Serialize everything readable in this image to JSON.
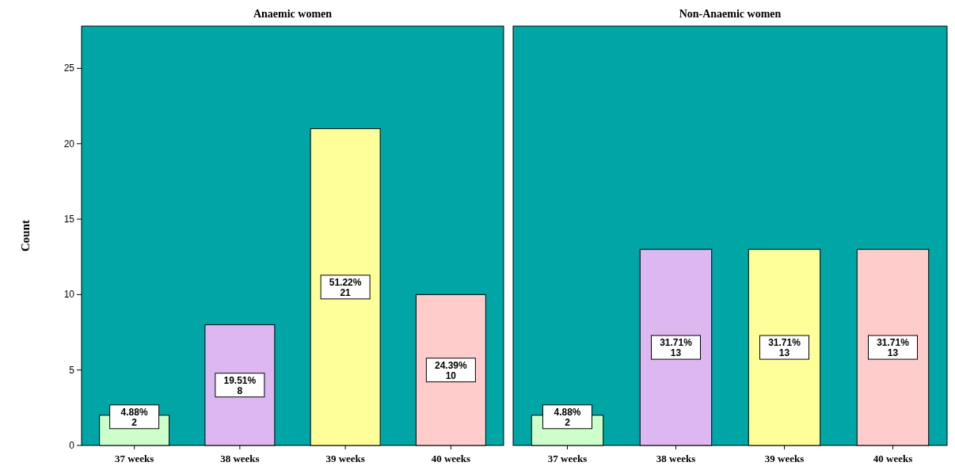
{
  "chart_data": [
    {
      "type": "bar",
      "title": "Anaemic women",
      "ylabel": "Count",
      "categories": [
        "37 weeks",
        "38 weeks",
        "39 weeks",
        "40 weeks"
      ],
      "values": [
        2,
        8,
        21,
        10
      ],
      "colors": [
        "#ccffcc",
        "#ddb8f0",
        "#ffff99",
        "#ffcccc"
      ],
      "value_labels": [
        "4.88%\n2",
        "19.51%\n8",
        "51.22%\n21",
        "24.39%\n10"
      ],
      "ylim": [
        0,
        27.8
      ],
      "yticks": [
        0,
        5,
        10,
        15,
        20,
        25
      ]
    },
    {
      "type": "bar",
      "title": "Non-Anaemic women",
      "categories": [
        "37 weeks",
        "38 weeks",
        "39 weeks",
        "40 weeks"
      ],
      "values": [
        2,
        13,
        13,
        13
      ],
      "colors": [
        "#ccffcc",
        "#ddb8f0",
        "#ffff99",
        "#ffcccc"
      ],
      "value_labels": [
        "4.88%\n2",
        "31.71%\n13",
        "31.71%\n13",
        "31.71%\n13"
      ],
      "ylim": [
        0,
        27.8
      ],
      "tick_labels": "x"
    }
  ]
}
